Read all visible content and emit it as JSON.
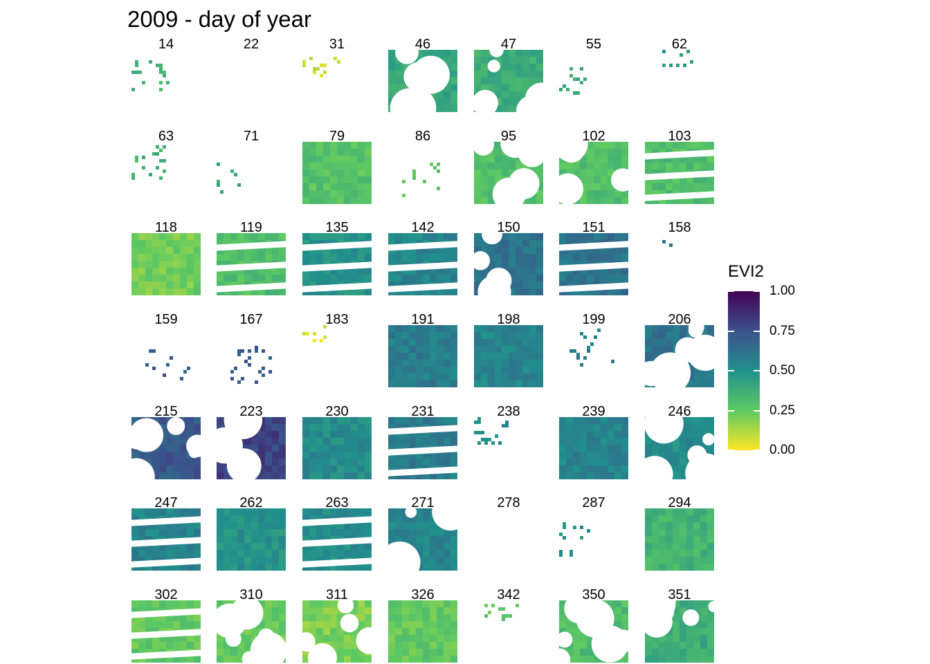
{
  "chart_data": {
    "type": "heatmap",
    "title": "2009 - day of year",
    "layout": "facet grid, 7 columns x 7 rows",
    "panels": [
      {
        "day": "14",
        "coverage": "sparse",
        "level": 0.35
      },
      {
        "day": "22",
        "coverage": "empty",
        "level": null
      },
      {
        "day": "31",
        "coverage": "sparse",
        "level": 0.08
      },
      {
        "day": "46",
        "coverage": "partial",
        "level": 0.4
      },
      {
        "day": "47",
        "coverage": "partial",
        "level": 0.38
      },
      {
        "day": "55",
        "coverage": "sparse",
        "level": 0.4
      },
      {
        "day": "62",
        "coverage": "sparse",
        "level": 0.45
      },
      {
        "day": "63",
        "coverage": "sparse",
        "level": 0.36
      },
      {
        "day": "71",
        "coverage": "sparse",
        "level": 0.4
      },
      {
        "day": "79",
        "coverage": "full",
        "level": 0.28
      },
      {
        "day": "86",
        "coverage": "sparse",
        "level": 0.25
      },
      {
        "day": "95",
        "coverage": "partial",
        "level": 0.3
      },
      {
        "day": "102",
        "coverage": "partial",
        "level": 0.3
      },
      {
        "day": "103",
        "coverage": "striped",
        "level": 0.3
      },
      {
        "day": "118",
        "coverage": "full",
        "level": 0.22
      },
      {
        "day": "119",
        "coverage": "striped",
        "level": 0.3
      },
      {
        "day": "135",
        "coverage": "striped",
        "level": 0.5
      },
      {
        "day": "142",
        "coverage": "striped",
        "level": 0.55
      },
      {
        "day": "150",
        "coverage": "partial",
        "level": 0.62
      },
      {
        "day": "151",
        "coverage": "striped",
        "level": 0.62
      },
      {
        "day": "158",
        "coverage": "sparse",
        "level": 0.62
      },
      {
        "day": "159",
        "coverage": "sparse",
        "level": 0.72
      },
      {
        "day": "167",
        "coverage": "sparse",
        "level": 0.72
      },
      {
        "day": "183",
        "coverage": "sparse",
        "level": 0.05
      },
      {
        "day": "191",
        "coverage": "full",
        "level": 0.58
      },
      {
        "day": "198",
        "coverage": "full",
        "level": 0.55
      },
      {
        "day": "199",
        "coverage": "sparse",
        "level": 0.58
      },
      {
        "day": "206",
        "coverage": "partial",
        "level": 0.62
      },
      {
        "day": "215",
        "coverage": "partial",
        "level": 0.72
      },
      {
        "day": "223",
        "coverage": "partial",
        "level": 0.8
      },
      {
        "day": "230",
        "coverage": "full",
        "level": 0.52
      },
      {
        "day": "231",
        "coverage": "striped",
        "level": 0.58
      },
      {
        "day": "238",
        "coverage": "sparse",
        "level": 0.52
      },
      {
        "day": "239",
        "coverage": "full",
        "level": 0.55
      },
      {
        "day": "246",
        "coverage": "partial",
        "level": 0.52
      },
      {
        "day": "247",
        "coverage": "striped",
        "level": 0.55
      },
      {
        "day": "262",
        "coverage": "full",
        "level": 0.5
      },
      {
        "day": "263",
        "coverage": "striped",
        "level": 0.52
      },
      {
        "day": "271",
        "coverage": "partial",
        "level": 0.55
      },
      {
        "day": "278",
        "coverage": "empty",
        "level": null
      },
      {
        "day": "287",
        "coverage": "sparse",
        "level": 0.5
      },
      {
        "day": "294",
        "coverage": "full",
        "level": 0.35
      },
      {
        "day": "302",
        "coverage": "striped",
        "level": 0.25
      },
      {
        "day": "310",
        "coverage": "partial",
        "level": 0.25
      },
      {
        "day": "311",
        "coverage": "partial",
        "level": 0.2
      },
      {
        "day": "326",
        "coverage": "full",
        "level": 0.25
      },
      {
        "day": "342",
        "coverage": "sparse",
        "level": 0.25
      },
      {
        "day": "350",
        "coverage": "partial",
        "level": 0.3
      },
      {
        "day": "351",
        "coverage": "partial",
        "level": 0.38
      }
    ],
    "legend": {
      "title": "EVI2",
      "placement": "right",
      "range": [
        0,
        1
      ],
      "ticks": [
        "1.00",
        "0.75",
        "0.50",
        "0.25",
        "0.00"
      ],
      "colormap": "viridis (reversed)"
    },
    "colors": {
      "low": "#fde725",
      "mid_low": "#5ec962",
      "mid": "#21918c",
      "mid_high": "#3b528b",
      "high": "#440154"
    }
  }
}
